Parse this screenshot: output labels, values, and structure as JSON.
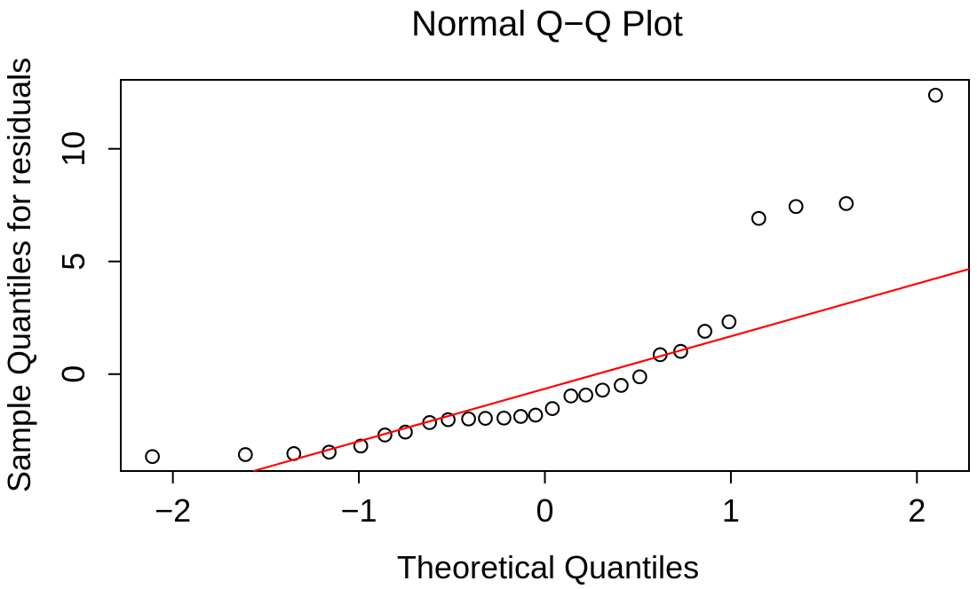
{
  "figure": {
    "background": "#ffffff",
    "foreground": "#000000"
  },
  "chart_data": {
    "type": "scatter",
    "title": "Normal Q−Q Plot",
    "xlabel": "Theoretical Quantiles",
    "ylabel": "Sample Quantiles for residuals",
    "xlim": [
      -2.28,
      2.28
    ],
    "ylim": [
      -4.3,
      13.06
    ],
    "x_ticks": [
      -2,
      -1,
      0,
      1,
      2
    ],
    "y_ticks": [
      0,
      5,
      10
    ],
    "grid": false,
    "legend": null,
    "marker": "open-circle",
    "marker_color": "#000000",
    "points": [
      [
        -2.11,
        -3.66
      ],
      [
        -1.61,
        -3.57
      ],
      [
        -1.35,
        -3.53
      ],
      [
        -1.16,
        -3.46
      ],
      [
        -0.99,
        -3.19
      ],
      [
        -0.86,
        -2.7
      ],
      [
        -0.75,
        -2.57
      ],
      [
        -0.62,
        -2.15
      ],
      [
        -0.52,
        -2.02
      ],
      [
        -0.41,
        -1.99
      ],
      [
        -0.32,
        -1.96
      ],
      [
        -0.22,
        -1.95
      ],
      [
        -0.13,
        -1.88
      ],
      [
        -0.05,
        -1.82
      ],
      [
        0.04,
        -1.53
      ],
      [
        0.14,
        -0.97
      ],
      [
        0.22,
        -0.93
      ],
      [
        0.31,
        -0.71
      ],
      [
        0.41,
        -0.5
      ],
      [
        0.51,
        -0.12
      ],
      [
        0.62,
        0.86
      ],
      [
        0.73,
        1.01
      ],
      [
        0.86,
        1.9
      ],
      [
        0.99,
        2.32
      ],
      [
        1.15,
        6.91
      ],
      [
        1.35,
        7.44
      ],
      [
        1.62,
        7.57
      ],
      [
        2.1,
        12.38
      ]
    ],
    "qq_line": {
      "slope": 2.33,
      "intercept": -0.65,
      "color": "#ff0000"
    }
  }
}
